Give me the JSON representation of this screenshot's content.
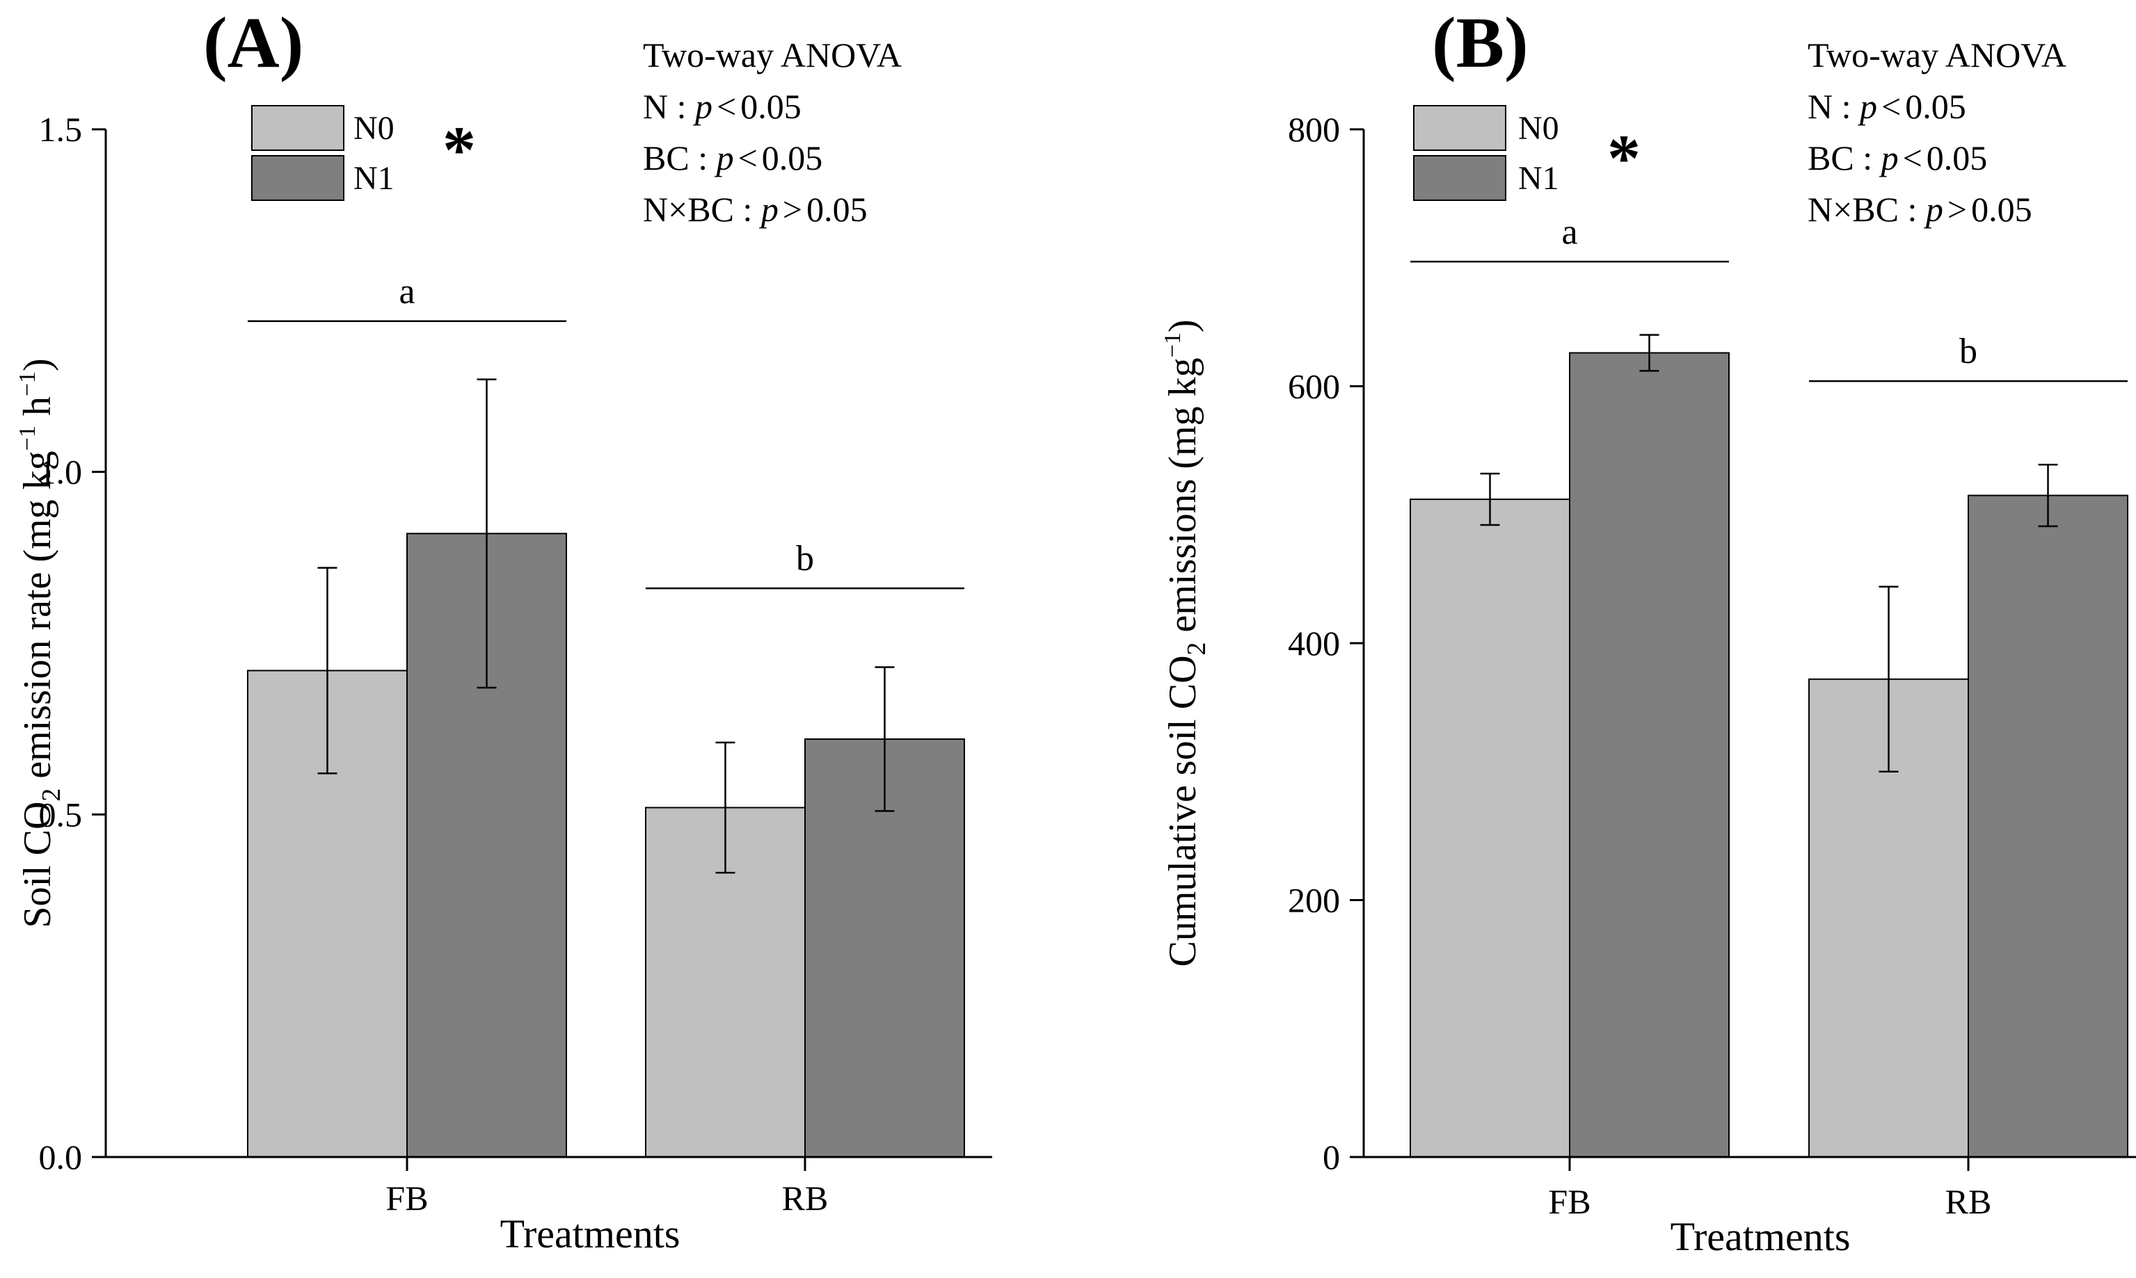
{
  "chart_data": [
    {
      "type": "bar",
      "panel_label": "(A)",
      "categories": [
        "FB",
        "RB"
      ],
      "series": [
        {
          "name": "N0",
          "color": "#c0c0c0",
          "values": [
            0.71,
            0.51
          ],
          "errors": [
            0.15,
            0.095
          ]
        },
        {
          "name": "N1",
          "color": "#7f7f7f",
          "values": [
            0.91,
            0.61
          ],
          "errors": [
            0.225,
            0.105
          ]
        }
      ],
      "ylim": [
        0,
        1.5
      ],
      "yticks": [
        0.0,
        0.5,
        1.0,
        1.5
      ],
      "ytick_labels": [
        "0.0",
        "0.5",
        "1.0",
        "1.5"
      ],
      "xlabel": "Treatments",
      "ylabel": {
        "p1": "Soil CO",
        "sub1": "2",
        "p2": " emission rate (mg kg",
        "sup1": "−1",
        "p3": " h",
        "sup2": "−1",
        "p4": ")"
      },
      "legend_position": "top-left",
      "legend_marker": "*",
      "significance": [
        {
          "category": "FB",
          "letter": "a",
          "line_y": 1.22
        },
        {
          "category": "RB",
          "letter": "b",
          "line_y": 0.83
        }
      ],
      "annotation": {
        "title": "Two-way ANOVA",
        "lines": [
          {
            "prefix": "N : ",
            "p": "p",
            "rel": "<",
            "val": "0.05"
          },
          {
            "prefix": "BC : ",
            "p": "p",
            "rel": "<",
            "val": "0.05"
          },
          {
            "prefix": "N×BC : ",
            "p": "p",
            "rel": ">",
            "val": "0.05"
          }
        ]
      }
    },
    {
      "type": "bar",
      "panel_label": "(B)",
      "categories": [
        "FB",
        "RB"
      ],
      "series": [
        {
          "name": "N0",
          "color": "#c0c0c0",
          "values": [
            512,
            372
          ],
          "errors": [
            20,
            72
          ]
        },
        {
          "name": "N1",
          "color": "#7f7f7f",
          "values": [
            626,
            515
          ],
          "errors": [
            14,
            24
          ]
        }
      ],
      "ylim": [
        0,
        800
      ],
      "yticks": [
        0,
        200,
        400,
        600,
        800
      ],
      "ytick_labels": [
        "0",
        "200",
        "400",
        "600",
        "800"
      ],
      "xlabel": "Treatments",
      "ylabel": {
        "p1": "Cumulative soil CO",
        "sub1": "2",
        "p2": " emissions (mg kg",
        "sup1": "−1",
        "p3": ")"
      },
      "legend_position": "top-left",
      "legend_marker": "*",
      "significance": [
        {
          "category": "FB",
          "letter": "a",
          "line_y": 697
        },
        {
          "category": "RB",
          "letter": "b",
          "line_y": 604
        }
      ],
      "annotation": {
        "title": "Two-way ANOVA",
        "lines": [
          {
            "prefix": "N : ",
            "p": "p",
            "rel": "<",
            "val": "0.05"
          },
          {
            "prefix": "BC : ",
            "p": "p",
            "rel": "<",
            "val": "0.05"
          },
          {
            "prefix": "N×BC : ",
            "p": "p",
            "rel": ">",
            "val": "0.05"
          }
        ]
      }
    }
  ]
}
